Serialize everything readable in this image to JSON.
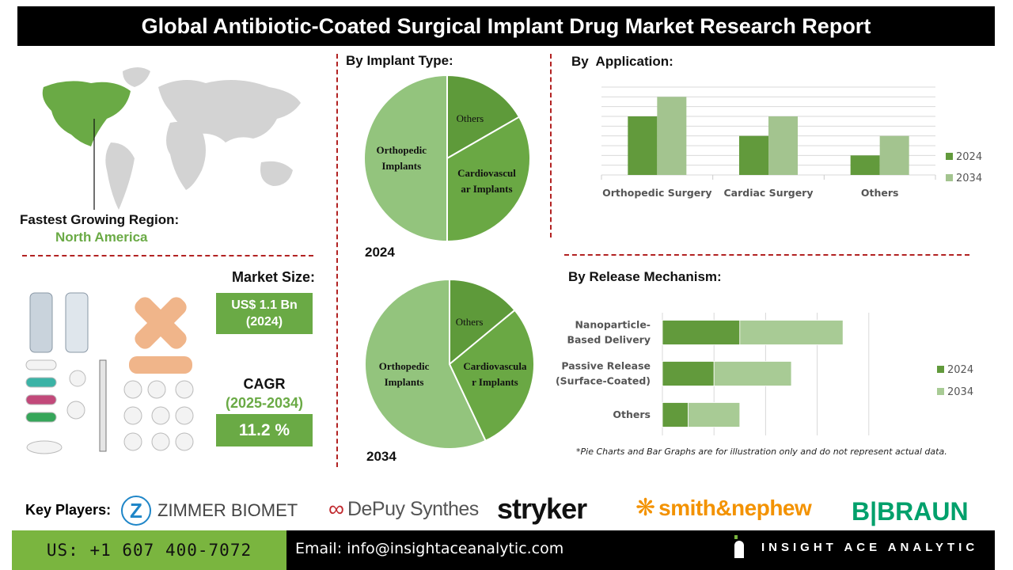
{
  "title": "Global Antibiotic-Coated Surgical Implant Drug Market Research Report",
  "region": {
    "label": "Fastest Growing Region:",
    "value": "North America"
  },
  "market_size": {
    "label": "Market Size:",
    "value_line1": "US$ 1.1 Bn",
    "value_line2": "(2024)"
  },
  "cagr": {
    "label": "CAGR",
    "period": "(2025-2034)",
    "value": "11.2 %"
  },
  "colors": {
    "dark_green": "#629a3c",
    "light_green": "#a3c48f",
    "accent_green": "#6aaa45",
    "divider_red": "#b22222"
  },
  "chart_data": [
    {
      "type": "pie",
      "title": "By Implant Type:",
      "year": "2024",
      "slices": [
        {
          "label": "Others",
          "value": 16.7,
          "color": "#5e9a3a"
        },
        {
          "label": "Cardiovascular Implants",
          "label_lines": [
            "Cardiovascul",
            "ar Implants"
          ],
          "value": 33.3,
          "color": "#6aa844"
        },
        {
          "label": "Orthopedic Implants",
          "label_lines": [
            "Orthopedic",
            "Implants"
          ],
          "value": 50,
          "color": "#93c47d"
        }
      ]
    },
    {
      "type": "pie",
      "year": "2034",
      "slices": [
        {
          "label": "Others",
          "value": 14,
          "color": "#5e9a3a"
        },
        {
          "label": "Cardiovascular Implants",
          "label_lines": [
            "Cardiovascula",
            "r Implants"
          ],
          "value": 29,
          "color": "#6aa844"
        },
        {
          "label": "Orthopedic Implants",
          "label_lines": [
            "Orthopedic",
            "Implants"
          ],
          "value": 57,
          "color": "#93c47d"
        }
      ]
    },
    {
      "type": "bar",
      "title": "By  Application:",
      "categories": [
        "Orthopedic Surgery",
        "Cardiac Surgery",
        "Others"
      ],
      "series": [
        {
          "name": "2024",
          "values": [
            6,
            4,
            2
          ],
          "color": "#629a3c"
        },
        {
          "name": "2034",
          "values": [
            8,
            6,
            4
          ],
          "color": "#a3c48f"
        }
      ],
      "ylim": [
        0,
        9
      ],
      "grid": true,
      "legend": "right"
    },
    {
      "type": "bar",
      "orientation": "horizontal",
      "stacked": true,
      "title": "By Release Mechanism:",
      "categories": [
        [
          "Nanoparticle-",
          "Based Delivery"
        ],
        [
          "Passive Release",
          "(Surface-Coated)"
        ],
        [
          "Others"
        ]
      ],
      "series": [
        {
          "name": "2024",
          "values": [
            3,
            2,
            1
          ],
          "color": "#629a3c"
        },
        {
          "name": "2034",
          "values": [
            4,
            3,
            2
          ],
          "color": "#a8cb95"
        }
      ],
      "xlim": [
        0,
        8
      ],
      "grid": true,
      "legend": "right"
    }
  ],
  "footnote": "*Pie Charts and Bar Graphs are for illustration only and do not represent actual data.",
  "key_players": {
    "label": "Key Players:",
    "companies": [
      "ZIMMER BIOMET",
      "DePuy Synthes",
      "stryker",
      "smith&nephew",
      "B|BRAUN"
    ]
  },
  "footer": {
    "phone": "US: +1 607 400-7072",
    "email": "Email: info@insightaceanalytic.com",
    "brand": "INSIGHT ACE ANALYTIC"
  }
}
